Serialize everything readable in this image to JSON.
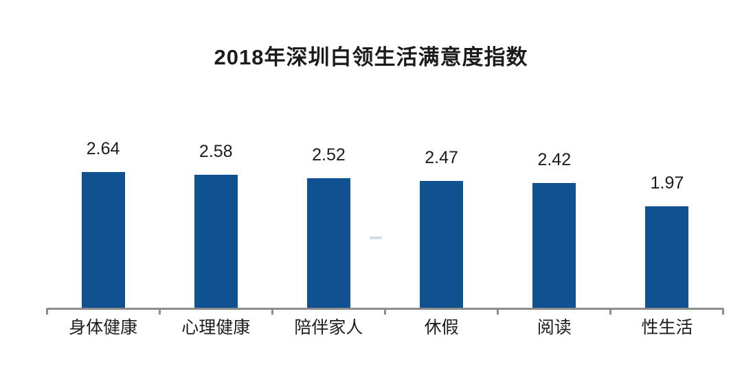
{
  "title": "2018年深圳白领生活满意度指数",
  "colors": {
    "bar": "#0F5191",
    "axis": "#8C8C8C",
    "text": "#1C1C1C",
    "background": "#FFFFFF",
    "watermark": "#AEBFCC"
  },
  "chart_data": {
    "type": "bar",
    "title": "2018年深圳白领生活满意度指数",
    "categories": [
      "身体健康",
      "心理健康",
      "陪伴家人",
      "休假",
      "阅读",
      "性生活"
    ],
    "values": [
      2.64,
      2.58,
      2.52,
      2.47,
      2.42,
      1.97
    ],
    "data_labels": [
      "2.64",
      "2.58",
      "2.52",
      "2.47",
      "2.42",
      "1.97"
    ],
    "xlabel": "",
    "ylabel": "",
    "ylim": [
      0,
      3
    ],
    "grid": false,
    "legend": "none",
    "bar_color": "#0F5191",
    "axis_color": "#8C8C8C",
    "tick_count": 7
  }
}
